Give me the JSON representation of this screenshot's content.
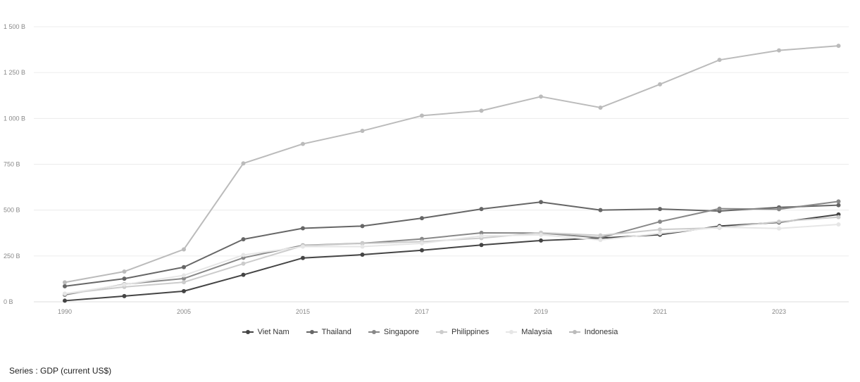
{
  "chart_data": {
    "type": "line",
    "x": [
      "1990",
      "2000",
      "2005",
      "2010",
      "2015",
      "2016",
      "2017",
      "2018",
      "2019",
      "2020",
      "2021",
      "2022",
      "2023",
      "2024"
    ],
    "x_tick_labels": [
      "1990",
      "2005",
      "2015",
      "2017",
      "2019",
      "2021",
      "2023"
    ],
    "y_tick_labels": [
      "0 B",
      "250 B",
      "500 B",
      "750 B",
      "1 000 B",
      "1 250 B",
      "1 500 B"
    ],
    "y_ticks": [
      0,
      250,
      500,
      750,
      1000,
      1250,
      1500
    ],
    "ylim": [
      0,
      1500
    ],
    "y_unit": "B",
    "grid": true,
    "legend_position": "bottom",
    "series": [
      {
        "name": "Viet Nam",
        "color": "#444444",
        "values": [
          6,
          31,
          58,
          147,
          239,
          257,
          281,
          310,
          334,
          347,
          366,
          413,
          433,
          476
        ]
      },
      {
        "name": "Thailand",
        "color": "#666666",
        "values": [
          85,
          126,
          189,
          341,
          401,
          413,
          456,
          506,
          544,
          500,
          506,
          495,
          515,
          527
        ]
      },
      {
        "name": "Singapore",
        "color": "#888888",
        "values": [
          38,
          96,
          127,
          240,
          308,
          319,
          343,
          376,
          375,
          349,
          437,
          508,
          505,
          547
        ]
      },
      {
        "name": "Philippines",
        "color": "#cccccc",
        "values": [
          44,
          81,
          107,
          208,
          306,
          318,
          328,
          347,
          377,
          362,
          394,
          404,
          437,
          462
        ]
      },
      {
        "name": "Malaysia",
        "color": "#e6e6e6",
        "values": [
          44,
          94,
          144,
          255,
          301,
          301,
          319,
          359,
          365,
          337,
          373,
          407,
          400,
          422
        ]
      },
      {
        "name": "Indonesia",
        "color": "#bbbbbb",
        "values": [
          106,
          165,
          286,
          755,
          861,
          932,
          1015,
          1042,
          1119,
          1059,
          1186,
          1319,
          1371,
          1396
        ]
      }
    ]
  },
  "caption": "Series : GDP (current US$)"
}
